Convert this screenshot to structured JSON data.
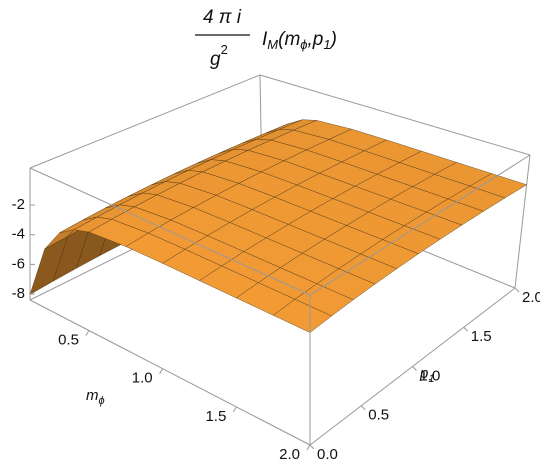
{
  "chart_data": {
    "type": "surface",
    "title": {
      "numerator": "4 π i",
      "denominator": "g",
      "denominator_sup": "2",
      "function": "I",
      "function_sub": "M",
      "open": "(m",
      "arg1_sub": "ϕ",
      "sep": ",p",
      "arg2_sub": "1",
      "close": ")"
    },
    "x_label": {
      "text": "m",
      "sub": "ϕ"
    },
    "y_label": {
      "text": "p",
      "sub": "1"
    },
    "color": "#f29b35",
    "x": [
      0.1,
      0.2,
      0.3,
      0.4,
      0.5,
      0.75,
      1.0,
      1.25,
      1.5,
      1.75,
      2.0
    ],
    "y": [
      0,
      0.2,
      0.4,
      0.6,
      0.8,
      1.0,
      1.2,
      1.4,
      1.6,
      1.8,
      2.0
    ],
    "z": [
      [
        -8.03,
        -7.9,
        -7.79,
        -7.71,
        -7.65,
        -7.61,
        -7.6,
        -7.61,
        -7.65,
        -7.71,
        -7.79
      ],
      [
        -4.47,
        -4.34,
        -4.23,
        -4.15,
        -4.09,
        -4.05,
        -4.04,
        -4.05,
        -4.09,
        -4.15,
        -4.23
      ],
      [
        -2.92,
        -2.79,
        -2.68,
        -2.6,
        -2.54,
        -2.5,
        -2.49,
        -2.5,
        -2.54,
        -2.6,
        -2.68
      ],
      [
        -2.25,
        -2.12,
        -2.01,
        -1.93,
        -1.87,
        -1.83,
        -1.82,
        -1.83,
        -1.87,
        -1.93,
        -2.01
      ],
      [
        -1.95,
        -1.82,
        -1.71,
        -1.63,
        -1.57,
        -1.53,
        -1.52,
        -1.53,
        -1.57,
        -1.63,
        -1.71
      ],
      [
        -1.76,
        -1.63,
        -1.52,
        -1.44,
        -1.38,
        -1.34,
        -1.33,
        -1.34,
        -1.38,
        -1.44,
        -1.52
      ],
      [
        -1.73,
        -1.6,
        -1.49,
        -1.41,
        -1.35,
        -1.31,
        -1.3,
        -1.31,
        -1.35,
        -1.41,
        -1.49
      ],
      [
        -1.73,
        -1.6,
        -1.49,
        -1.41,
        -1.35,
        -1.31,
        -1.3,
        -1.31,
        -1.35,
        -1.41,
        -1.49
      ],
      [
        -1.73,
        -1.6,
        -1.49,
        -1.41,
        -1.35,
        -1.31,
        -1.3,
        -1.31,
        -1.35,
        -1.41,
        -1.49
      ],
      [
        -1.73,
        -1.6,
        -1.49,
        -1.41,
        -1.35,
        -1.31,
        -1.3,
        -1.31,
        -1.35,
        -1.41,
        -1.49
      ],
      [
        -1.73,
        -1.6,
        -1.49,
        -1.41,
        -1.35,
        -1.31,
        -1.3,
        -1.31,
        -1.35,
        -1.41,
        -1.49
      ]
    ],
    "xlim": [
      0.1,
      2
    ],
    "ylim": [
      0,
      2
    ],
    "zlim": [
      -8.4,
      0.5
    ],
    "xticks": [
      0.5,
      {
        "value": 1,
        "label": "1.0"
      },
      1.5,
      {
        "value": 2,
        "label": "2.0"
      }
    ],
    "yticks": [
      {
        "value": 0,
        "label": "0.0"
      },
      0.5,
      {
        "value": 1,
        "label": "1.0"
      },
      1.5,
      {
        "value": 2,
        "label": "2.0"
      }
    ],
    "zticks": [
      -2,
      -4,
      -6,
      -8
    ]
  }
}
